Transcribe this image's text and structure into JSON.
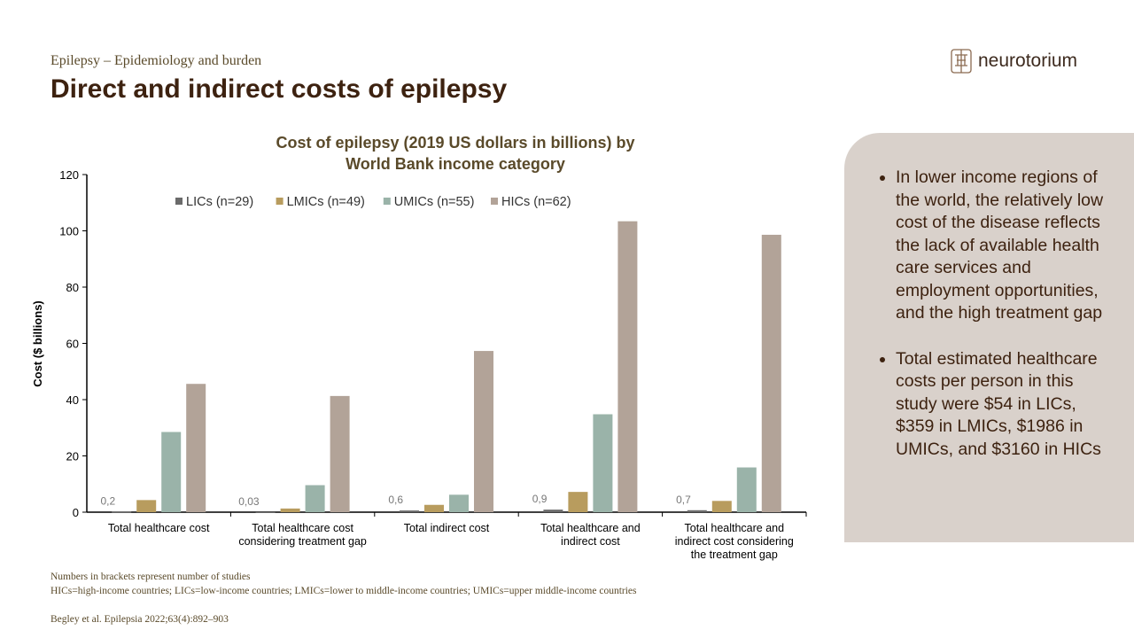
{
  "header": {
    "subtitle": "Epilepsy – Epidemiology and burden",
    "title": "Direct and indirect costs of epilepsy",
    "logo": "neurotorium"
  },
  "panel": {
    "bullets": [
      "In lower income regions of the world, the relatively low cost of the disease reflects the lack of available health care services and employment opportunities, and the high treatment gap",
      "Total estimated healthcare costs per person in this study were $54 in LICs, $359 in LMICs, $1986 in UMICs, and $3160 in HICs"
    ]
  },
  "footer": {
    "note1": "Numbers in brackets represent number of studies",
    "note2": "HICs=high-income countries; LICs=low-income countries; LMICs=lower to middle-income countries; UMICs=upper middle-income countries",
    "citation": "Begley et al. Epilepsia 2022;63(4):892–903"
  },
  "chart_data": {
    "type": "bar",
    "title": [
      "Cost of epilepsy (2019 US dollars in billions) by",
      "World Bank income category"
    ],
    "ylabel": "Cost ($ billions)",
    "xlabel": "",
    "ylim": [
      0,
      120
    ],
    "yticks": [
      0,
      20,
      40,
      60,
      80,
      100,
      120
    ],
    "categories": [
      [
        "Total healthcare cost"
      ],
      [
        "Total healthcare cost",
        "considering treatment gap"
      ],
      [
        "Total indirect cost"
      ],
      [
        "Total healthcare and",
        "indirect cost"
      ],
      [
        "Total healthcare and",
        "indirect cost considering",
        "the treatment gap"
      ]
    ],
    "legend_position": "top",
    "series": [
      {
        "name": "LICs (n=29)",
        "color": "#6b6b6b",
        "values": [
          0.2,
          0.03,
          0.6,
          0.9,
          0.7
        ],
        "labels": [
          "0,2",
          "0,03",
          "0,6",
          "0,9",
          "0,7"
        ]
      },
      {
        "name": "LMICs (n=49)",
        "color": "#b89c5e",
        "values": [
          4.3,
          1.3,
          2.6,
          7.2,
          4.0
        ]
      },
      {
        "name": "UMICs (n=55)",
        "color": "#9ab3a9",
        "values": [
          28.5,
          9.6,
          6.2,
          34.8,
          15.9
        ]
      },
      {
        "name": "HICs (n=62)",
        "color": "#b2a398",
        "values": [
          45.6,
          41.3,
          57.3,
          103.4,
          98.6
        ]
      }
    ]
  }
}
